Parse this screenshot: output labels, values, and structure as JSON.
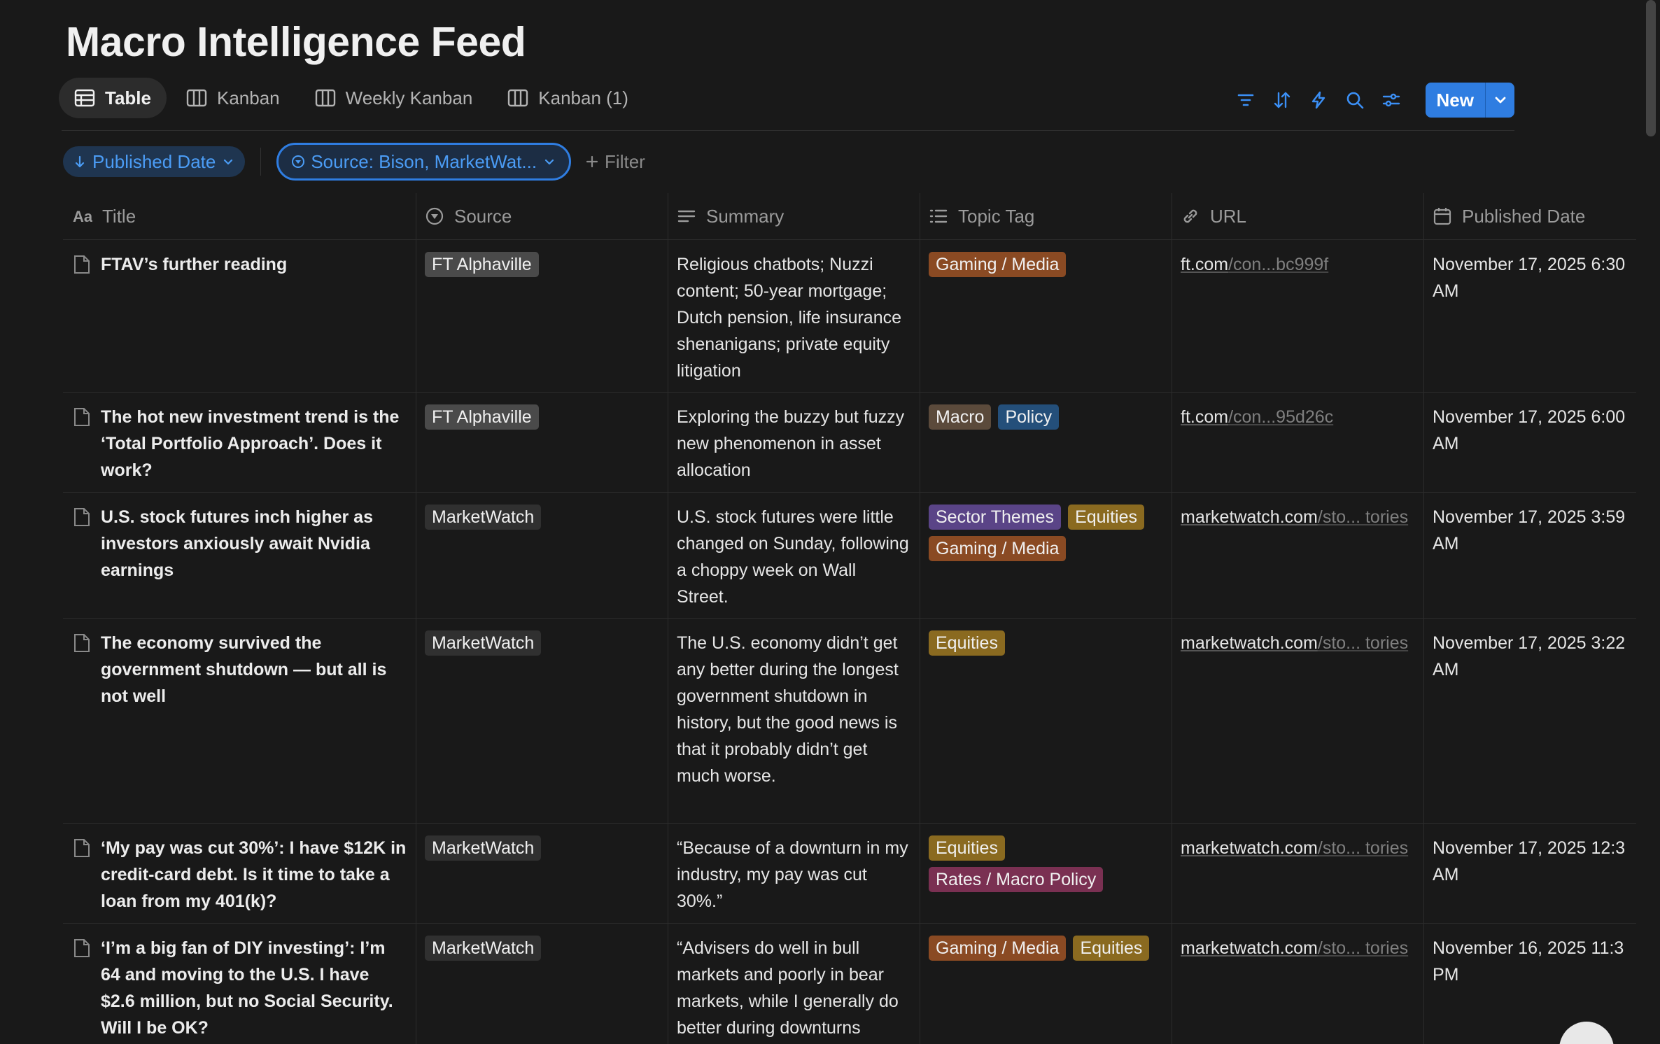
{
  "page": {
    "title": "Macro Intelligence Feed"
  },
  "views": [
    {
      "label": "Table",
      "icon": "table-icon",
      "active": true
    },
    {
      "label": "Kanban",
      "icon": "board-icon"
    },
    {
      "label": "Weekly Kanban",
      "icon": "board-icon"
    },
    {
      "label": "Kanban (1)",
      "icon": "board-icon"
    }
  ],
  "toolbar": {
    "icons": [
      "filter-icon",
      "sort-icon",
      "automation-icon",
      "search-icon",
      "settings-icon"
    ],
    "new_label": "New"
  },
  "filters": {
    "sort_chip": "Published Date",
    "source_chip": "Source: Bison, MarketWat...",
    "add_filter": "Filter"
  },
  "columns": {
    "title": "Title",
    "source": "Source",
    "summary": "Summary",
    "topic": "Topic Tag",
    "url": "URL",
    "date": "Published Date"
  },
  "rows": [
    {
      "title": "FTAV’s further reading",
      "source": "FT Alphaville",
      "summary": "Religious chatbots; Nuzzi content; 50-year mortgage; Dutch pension, life insurance shenanigans; private equity litigation",
      "tags": [
        "Gaming / Media"
      ],
      "url_host": "ft.com",
      "url_rest": "/con...bc999f",
      "date_line1": "November 17, 2025 6:30",
      "date_line2": "AM"
    },
    {
      "title": "The hot new investment trend is the ‘Total Portfolio Approach’. Does it work?",
      "source": "FT Alphaville",
      "summary": "Exploring the buzzy but fuzzy new phenomenon in asset allocation",
      "tags": [
        "Macro",
        "Policy"
      ],
      "url_host": "ft.com",
      "url_rest": "/con...95d26c",
      "date_line1": "November 17, 2025 6:00",
      "date_line2": "AM"
    },
    {
      "title": "U.S. stock futures inch higher as investors anxiously await Nvidia earnings",
      "source": "MarketWatch",
      "summary": "U.S. stock futures were little changed on Sunday, following a choppy week on Wall Street.",
      "tags": [
        "Sector Themes",
        "Equities",
        "Gaming / Media"
      ],
      "url_host": "marketwatch.com",
      "url_rest": "/sto... tories",
      "date_line1": "November 17, 2025 3:59",
      "date_line2": "AM"
    },
    {
      "title": "The economy survived the government shutdown — but all is not well",
      "source": "MarketWatch",
      "summary": "The U.S. economy didn’t get any better during the longest government shutdown in history, but the good news is that it probably didn’t get much worse.",
      "tags": [
        "Equities"
      ],
      "url_host": "marketwatch.com",
      "url_rest": "/sto... tories",
      "date_line1": "November 17, 2025 3:22",
      "date_line2": "AM"
    },
    {
      "title": "‘My pay was cut 30%’: I have $12K in credit-card debt. Is it time to take a loan from my 401(k)?",
      "source": "MarketWatch",
      "summary": "“Because of a downturn in my industry, my pay was cut 30%.”",
      "tags": [
        "Equities",
        "Rates / Macro Policy"
      ],
      "url_host": "marketwatch.com",
      "url_rest": "/sto... tories",
      "date_line1": "November 17, 2025 12:3",
      "date_line2": "AM"
    },
    {
      "title": "‘I’m a big fan of DIY investing’: I’m 64 and moving to the U.S. I have $2.6 million, but no Social Security. Will I be OK?",
      "source": "MarketWatch",
      "summary": "“Advisers do well in bull markets and poorly in bear markets, while I generally do better during downturns",
      "tags": [
        "Gaming / Media",
        "Equities"
      ],
      "url_host": "marketwatch.com",
      "url_rest": "/sto... tories",
      "date_line1": "November 16, 2025 11:3",
      "date_line2": "PM"
    }
  ],
  "colors": {
    "accent": "#2f7de1",
    "background": "#191919",
    "tag_colors": {
      "FT Alphaville": "#4a4a4a",
      "MarketWatch": "#303030",
      "Gaming / Media": "#8a4a23",
      "Macro": "#5b4a3b",
      "Policy": "#244f7a",
      "Sector Themes": "#5a4487",
      "Equities": "#8a6a20",
      "Rates / Macro Policy": "#7a3052"
    }
  }
}
